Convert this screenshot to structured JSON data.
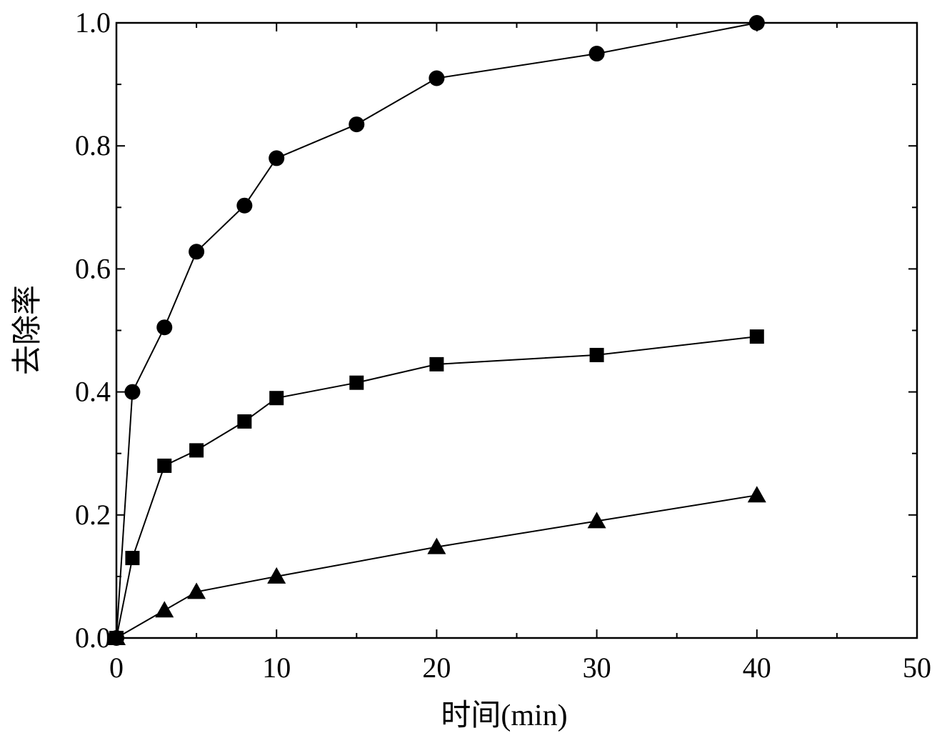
{
  "chart_data": {
    "type": "line",
    "title": "",
    "xlabel": "时间(min)",
    "ylabel": "去除率",
    "xlim": [
      0,
      50
    ],
    "ylim": [
      0,
      1.0
    ],
    "x_ticks": [
      "0",
      "10",
      "20",
      "30",
      "40",
      "50"
    ],
    "y_ticks": [
      "0.0",
      "0.2",
      "0.4",
      "0.6",
      "0.8",
      "1.0"
    ],
    "grid": false,
    "legend": "none",
    "series": [
      {
        "marker": "circle",
        "x": [
          0,
          1,
          3,
          5,
          8,
          10,
          15,
          20,
          30,
          40
        ],
        "y": [
          0,
          0.4,
          0.505,
          0.628,
          0.703,
          0.78,
          0.835,
          0.91,
          0.95,
          1.0
        ]
      },
      {
        "marker": "square",
        "x": [
          0,
          1,
          3,
          5,
          8,
          10,
          15,
          20,
          30,
          40
        ],
        "y": [
          0,
          0.13,
          0.28,
          0.305,
          0.352,
          0.39,
          0.415,
          0.445,
          0.46,
          0.49
        ]
      },
      {
        "marker": "triangle",
        "x": [
          0,
          3,
          5,
          10,
          20,
          30,
          40
        ],
        "y": [
          0,
          0.045,
          0.075,
          0.1,
          0.148,
          0.19,
          0.232
        ]
      }
    ]
  }
}
